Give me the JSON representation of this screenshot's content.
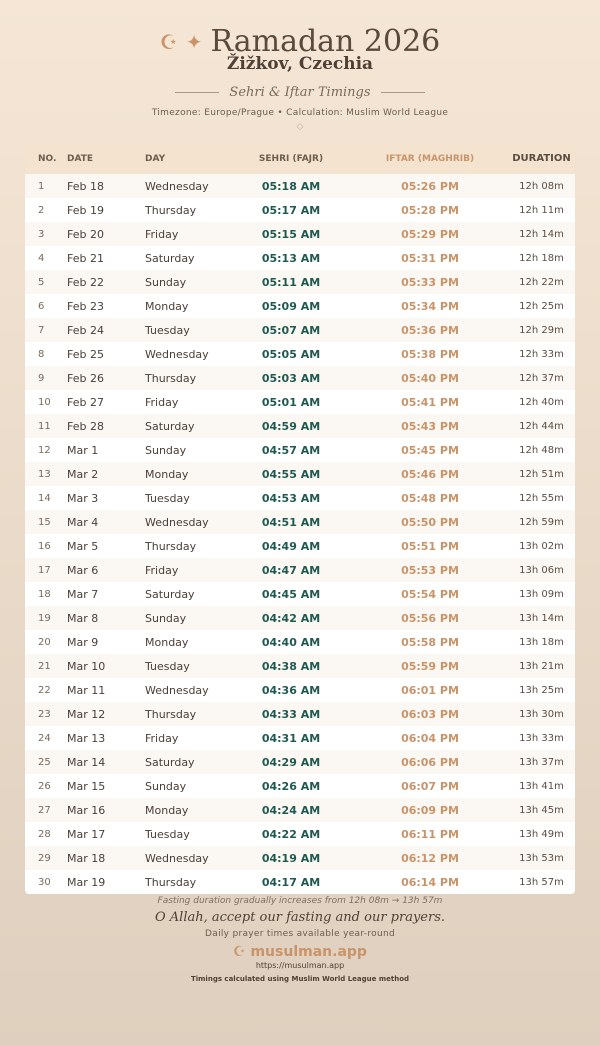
{
  "header": {
    "title": "Ramadan 2026",
    "city": "Žižkov, Czechia",
    "subtitle": "Sehri & Iftar Timings",
    "meta": "Timezone: Europe/Prague • Calculation: Muslim World League",
    "moon": "☪",
    "star": "✦",
    "diamond": "◇"
  },
  "columns": [
    "NO.",
    "DATE",
    "DAY",
    "SEHRI (FAJR)",
    "IFTAR (MAGHRIB)",
    "DURATION"
  ],
  "rows": [
    [
      "1",
      "Feb 18",
      "Wednesday",
      "05:18 AM",
      "05:26 PM",
      "12h 08m"
    ],
    [
      "2",
      "Feb 19",
      "Thursday",
      "05:17 AM",
      "05:28 PM",
      "12h 11m"
    ],
    [
      "3",
      "Feb 20",
      "Friday",
      "05:15 AM",
      "05:29 PM",
      "12h 14m"
    ],
    [
      "4",
      "Feb 21",
      "Saturday",
      "05:13 AM",
      "05:31 PM",
      "12h 18m"
    ],
    [
      "5",
      "Feb 22",
      "Sunday",
      "05:11 AM",
      "05:33 PM",
      "12h 22m"
    ],
    [
      "6",
      "Feb 23",
      "Monday",
      "05:09 AM",
      "05:34 PM",
      "12h 25m"
    ],
    [
      "7",
      "Feb 24",
      "Tuesday",
      "05:07 AM",
      "05:36 PM",
      "12h 29m"
    ],
    [
      "8",
      "Feb 25",
      "Wednesday",
      "05:05 AM",
      "05:38 PM",
      "12h 33m"
    ],
    [
      "9",
      "Feb 26",
      "Thursday",
      "05:03 AM",
      "05:40 PM",
      "12h 37m"
    ],
    [
      "10",
      "Feb 27",
      "Friday",
      "05:01 AM",
      "05:41 PM",
      "12h 40m"
    ],
    [
      "11",
      "Feb 28",
      "Saturday",
      "04:59 AM",
      "05:43 PM",
      "12h 44m"
    ],
    [
      "12",
      "Mar 1",
      "Sunday",
      "04:57 AM",
      "05:45 PM",
      "12h 48m"
    ],
    [
      "13",
      "Mar 2",
      "Monday",
      "04:55 AM",
      "05:46 PM",
      "12h 51m"
    ],
    [
      "14",
      "Mar 3",
      "Tuesday",
      "04:53 AM",
      "05:48 PM",
      "12h 55m"
    ],
    [
      "15",
      "Mar 4",
      "Wednesday",
      "04:51 AM",
      "05:50 PM",
      "12h 59m"
    ],
    [
      "16",
      "Mar 5",
      "Thursday",
      "04:49 AM",
      "05:51 PM",
      "13h 02m"
    ],
    [
      "17",
      "Mar 6",
      "Friday",
      "04:47 AM",
      "05:53 PM",
      "13h 06m"
    ],
    [
      "18",
      "Mar 7",
      "Saturday",
      "04:45 AM",
      "05:54 PM",
      "13h 09m"
    ],
    [
      "19",
      "Mar 8",
      "Sunday",
      "04:42 AM",
      "05:56 PM",
      "13h 14m"
    ],
    [
      "20",
      "Mar 9",
      "Monday",
      "04:40 AM",
      "05:58 PM",
      "13h 18m"
    ],
    [
      "21",
      "Mar 10",
      "Tuesday",
      "04:38 AM",
      "05:59 PM",
      "13h 21m"
    ],
    [
      "22",
      "Mar 11",
      "Wednesday",
      "04:36 AM",
      "06:01 PM",
      "13h 25m"
    ],
    [
      "23",
      "Mar 12",
      "Thursday",
      "04:33 AM",
      "06:03 PM",
      "13h 30m"
    ],
    [
      "24",
      "Mar 13",
      "Friday",
      "04:31 AM",
      "06:04 PM",
      "13h 33m"
    ],
    [
      "25",
      "Mar 14",
      "Saturday",
      "04:29 AM",
      "06:06 PM",
      "13h 37m"
    ],
    [
      "26",
      "Mar 15",
      "Sunday",
      "04:26 AM",
      "06:07 PM",
      "13h 41m"
    ],
    [
      "27",
      "Mar 16",
      "Monday",
      "04:24 AM",
      "06:09 PM",
      "13h 45m"
    ],
    [
      "28",
      "Mar 17",
      "Tuesday",
      "04:22 AM",
      "06:11 PM",
      "13h 49m"
    ],
    [
      "29",
      "Mar 18",
      "Wednesday",
      "04:19 AM",
      "06:12 PM",
      "13h 53m"
    ],
    [
      "30",
      "Mar 19",
      "Thursday",
      "04:17 AM",
      "06:14 PM",
      "13h 57m"
    ]
  ],
  "footer": {
    "note": "Fasting duration gradually increases from 12h 08m → 13h 57m",
    "dua": "O Allah, accept our fasting and our prayers.",
    "tagline": "Daily prayer times available year-round",
    "brand": "☪ musulman.app",
    "url": "https://musulman.app",
    "method": "Timings calculated using Muslim World League method"
  },
  "colors": {
    "sehri": "#1f5a50",
    "iftar": "#c9946a",
    "background": "#f5e6d5"
  }
}
